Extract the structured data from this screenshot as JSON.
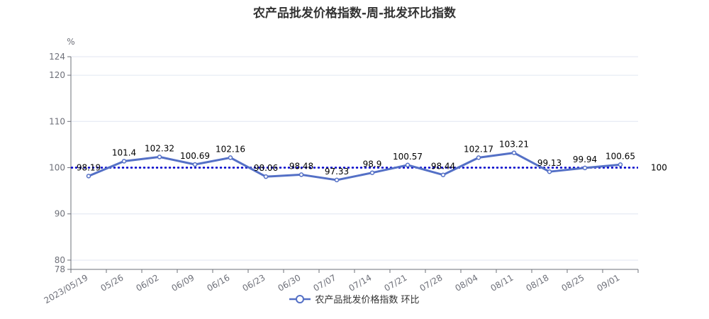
{
  "chart_data": {
    "type": "line",
    "title": "农产品批发价格指数-周-批发环比指数",
    "ylabel": "%",
    "ylim": [
      78,
      124
    ],
    "yticks": [
      78,
      80,
      90,
      100,
      110,
      120,
      124
    ],
    "categories": [
      "2023/05/19",
      "05/26",
      "06/02",
      "06/09",
      "06/16",
      "06/23",
      "06/30",
      "07/07",
      "07/14",
      "07/21",
      "07/28",
      "08/04",
      "08/11",
      "08/18",
      "08/25",
      "09/01"
    ],
    "series": [
      {
        "name": "农产品批发价格指数 环比",
        "values": [
          98.19,
          101.4,
          102.32,
          100.69,
          102.16,
          98.06,
          98.48,
          97.33,
          98.9,
          100.57,
          98.44,
          102.17,
          103.21,
          99.13,
          99.94,
          100.65
        ],
        "labels": [
          "98.19",
          "101.4",
          "102.32",
          "100.69",
          "102.16",
          "98.06",
          "98.48",
          "97.33",
          "98.9",
          "100.57",
          "98.44",
          "102.17",
          "103.21",
          "99.13",
          "99.94",
          "100.65"
        ]
      }
    ],
    "reference_line": {
      "value": 100,
      "label": "100",
      "style": "dotted"
    },
    "colors": {
      "series": "#5470c6",
      "reference": "#0000cc",
      "axis": "#6e7079",
      "grid": "#e0e6f1"
    },
    "grid": true,
    "legend_position": "bottom"
  }
}
